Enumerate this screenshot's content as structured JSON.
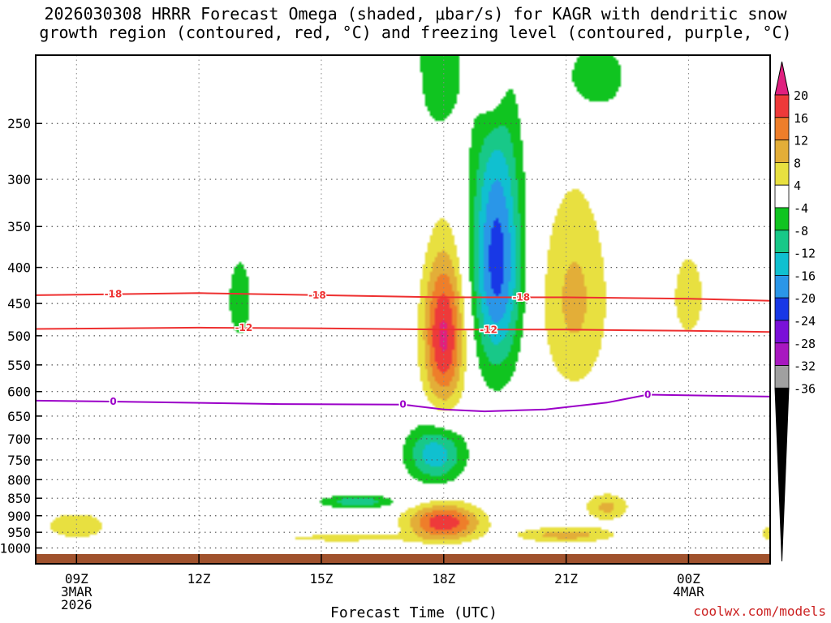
{
  "title_lines": [
    "2026030308 HRRR Forecast Omega (shaded, μbar/s) for KAGR with dendritic snow",
    "growth region (contoured, red, °C) and freezing level (contoured, purple, °C)"
  ],
  "credit": "coolwx.com/models",
  "chart_data": {
    "type": "contour-timeheight",
    "title": "2026030308 HRRR Forecast Omega (shaded, μbar/s) for KAGR with dendritic snow growth region (contoured, red, °C) and freezing level (contoured, purple, °C)",
    "xlabel": "Forecast Time (UTC)",
    "ylabel": "",
    "x_range_hours_utc": [
      8,
      26
    ],
    "y_range_hPa": [
      1020,
      200
    ],
    "y_ticks": [
      250,
      300,
      350,
      400,
      450,
      500,
      550,
      600,
      650,
      700,
      750,
      800,
      850,
      900,
      950,
      1000
    ],
    "x_ticks": [
      {
        "hour": 9,
        "lines": [
          "09Z",
          "3MAR",
          "2026"
        ]
      },
      {
        "hour": 12,
        "lines": [
          "12Z"
        ]
      },
      {
        "hour": 15,
        "lines": [
          "15Z"
        ]
      },
      {
        "hour": 18,
        "lines": [
          "18Z"
        ]
      },
      {
        "hour": 21,
        "lines": [
          "21Z"
        ]
      },
      {
        "hour": 24,
        "lines": [
          "00Z",
          "4MAR"
        ]
      }
    ],
    "colorbar": {
      "units": "μbar/s",
      "labels": [
        "20",
        "16",
        "12",
        "8",
        "4",
        "-4",
        "-8",
        "-12",
        "-16",
        "-20",
        "-24",
        "-28",
        "-32",
        "-36"
      ],
      "bins": [
        {
          "lo": 20,
          "hi": 99,
          "color": "#e0207f"
        },
        {
          "lo": 16,
          "hi": 20,
          "color": "#ee3a3a"
        },
        {
          "lo": 12,
          "hi": 16,
          "color": "#ee7e2a"
        },
        {
          "lo": 8,
          "hi": 12,
          "color": "#e3ae38"
        },
        {
          "lo": 4,
          "hi": 8,
          "color": "#e8e040"
        },
        {
          "lo": -4,
          "hi": 4,
          "color": "#ffffff"
        },
        {
          "lo": -8,
          "hi": -4,
          "color": "#10c420"
        },
        {
          "lo": -12,
          "hi": -8,
          "color": "#18c888"
        },
        {
          "lo": -16,
          "hi": -12,
          "color": "#10c0d0"
        },
        {
          "lo": -20,
          "hi": -16,
          "color": "#2a96e8"
        },
        {
          "lo": -24,
          "hi": -20,
          "color": "#1838e6"
        },
        {
          "lo": -28,
          "hi": -24,
          "color": "#7a10d8"
        },
        {
          "lo": -32,
          "hi": -28,
          "color": "#a818c0"
        },
        {
          "lo": -36,
          "hi": -32,
          "color": "#a0a0a0"
        },
        {
          "lo": -99,
          "hi": -36,
          "color": "#000000"
        }
      ]
    },
    "omega_features": [
      {
        "name": "green-250-17z",
        "hour": 17.9,
        "p_hPa": 205,
        "dh": 0.55,
        "dp": 55,
        "peak": -8
      },
      {
        "name": "yellow-top-19z",
        "hour": 19.2,
        "p_hPa": 215,
        "dh": 0.35,
        "dp": 40,
        "peak": 7
      },
      {
        "name": "green-top-21z",
        "hour": 21.7,
        "p_hPa": 215,
        "dh": 0.9,
        "dp": 30,
        "peak": -7
      },
      {
        "name": "green-13z",
        "hour": 13.0,
        "p_hPa": 445,
        "dh": 0.38,
        "dp": 80,
        "peak": -6
      },
      {
        "name": "upward-core-19z",
        "hour": 19.3,
        "p_hPa": 390,
        "dh": 0.6,
        "dp": 160,
        "peak": -22
      },
      {
        "name": "downward-core-18z",
        "hour": 18.0,
        "p_hPa": 500,
        "dh": 0.5,
        "dp": 125,
        "peak": 21
      },
      {
        "name": "yellow-21z",
        "hour": 21.2,
        "p_hPa": 445,
        "dh": 0.85,
        "dp": 150,
        "peak": 9
      },
      {
        "name": "yellow-00z",
        "hour": 24.0,
        "p_hPa": 440,
        "dh": 0.5,
        "dp": 80,
        "peak": 6
      },
      {
        "name": "green-700-18z",
        "hour": 17.8,
        "p_hPa": 735,
        "dh": 0.7,
        "dp": 70,
        "peak": -15
      },
      {
        "name": "green-850-16z",
        "hour": 15.9,
        "p_hPa": 860,
        "dh": 0.95,
        "dp": 18,
        "peak": -11
      },
      {
        "name": "low-warm-18z",
        "hour": 18.0,
        "p_hPa": 920,
        "dh": 0.9,
        "dp": 55,
        "peak": 19
      },
      {
        "name": "yellow-09z",
        "hour": 9.0,
        "p_hPa": 930,
        "dh": 1.0,
        "dp": 55,
        "peak": 6
      },
      {
        "name": "yellow-950-15z",
        "hour": 15.5,
        "p_hPa": 968,
        "dh": 1.8,
        "dp": 14,
        "peak": 6
      },
      {
        "name": "low-21z",
        "hour": 21.0,
        "p_hPa": 958,
        "dh": 1.2,
        "dp": 25,
        "peak": 10
      },
      {
        "name": "yellow-850-22z",
        "hour": 22.0,
        "p_hPa": 875,
        "dh": 0.55,
        "dp": 40,
        "peak": 9
      },
      {
        "name": "yellow-edge-26z",
        "hour": 26.0,
        "p_hPa": 955,
        "dh": 0.3,
        "dp": 30,
        "peak": 6
      }
    ],
    "contours": [
      {
        "name": "dgz-minus-18",
        "label": "-18",
        "color": "#ee3030",
        "points": [
          [
            8,
            438
          ],
          [
            12,
            435
          ],
          [
            15,
            438
          ],
          [
            18,
            441
          ],
          [
            21,
            441
          ],
          [
            24,
            443
          ],
          [
            26,
            446
          ]
        ]
      },
      {
        "name": "dgz-minus-12",
        "label": "-12",
        "color": "#ee3030",
        "points": [
          [
            8,
            489
          ],
          [
            12,
            487
          ],
          [
            15,
            488
          ],
          [
            18,
            490
          ],
          [
            21,
            490
          ],
          [
            24,
            492
          ],
          [
            26,
            494
          ]
        ]
      },
      {
        "name": "freezing-level",
        "label": "0",
        "color": "#9b00c8",
        "points": [
          [
            8,
            618
          ],
          [
            10,
            620
          ],
          [
            14,
            625
          ],
          [
            17,
            626
          ],
          [
            18,
            636
          ],
          [
            19,
            640
          ],
          [
            20.5,
            636
          ],
          [
            22,
            622
          ],
          [
            23,
            606
          ],
          [
            26,
            610
          ]
        ]
      }
    ],
    "contour_label_positions": [
      {
        "contour": 0,
        "hour": 9.9
      },
      {
        "contour": 0,
        "hour": 14.9
      },
      {
        "contour": 0,
        "hour": 19.9
      },
      {
        "contour": 1,
        "hour": 13.1
      },
      {
        "contour": 1,
        "hour": 19.1
      },
      {
        "contour": 2,
        "hour": 9.9
      },
      {
        "contour": 2,
        "hour": 17.0
      },
      {
        "contour": 2,
        "hour": 23.0
      }
    ]
  }
}
